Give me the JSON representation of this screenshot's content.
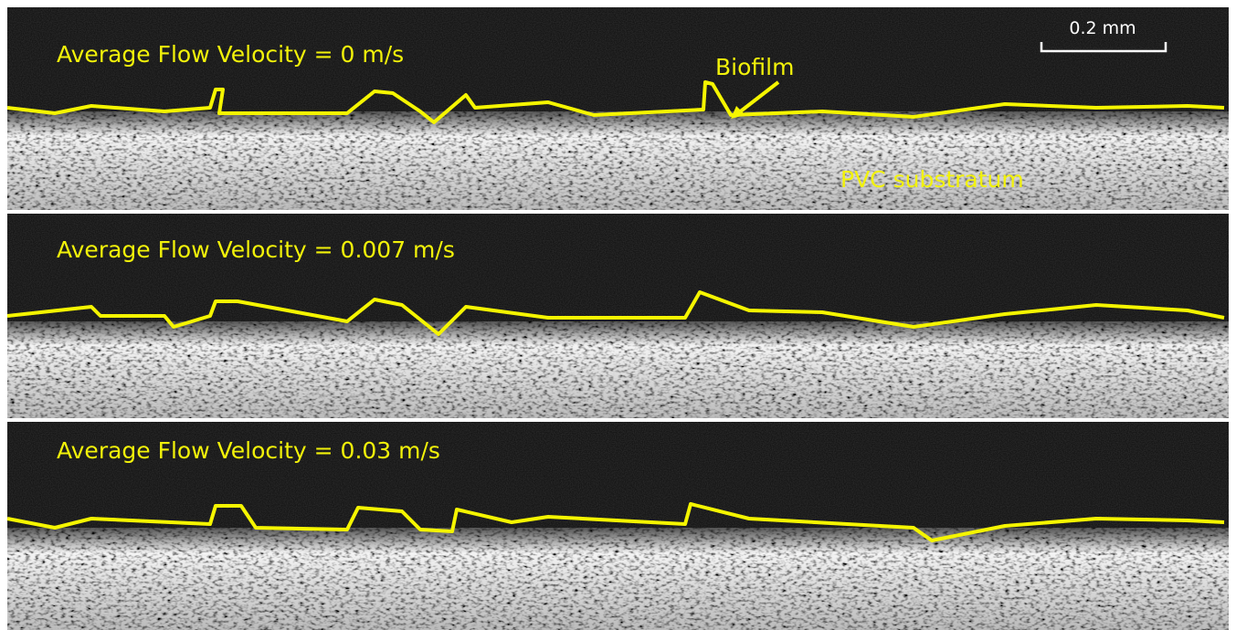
{
  "scale_bar": "0.2 mm",
  "panels": [
    {
      "label": "Average Flow Velocity = 0 m/s"
    },
    {
      "label": "Average Flow Velocity = 0.007 m/s"
    },
    {
      "label": "Average Flow Velocity = 0.03 m/s"
    }
  ],
  "annotations": {
    "biofilm": "Biofilm",
    "substrate": "PVC substratum"
  }
}
